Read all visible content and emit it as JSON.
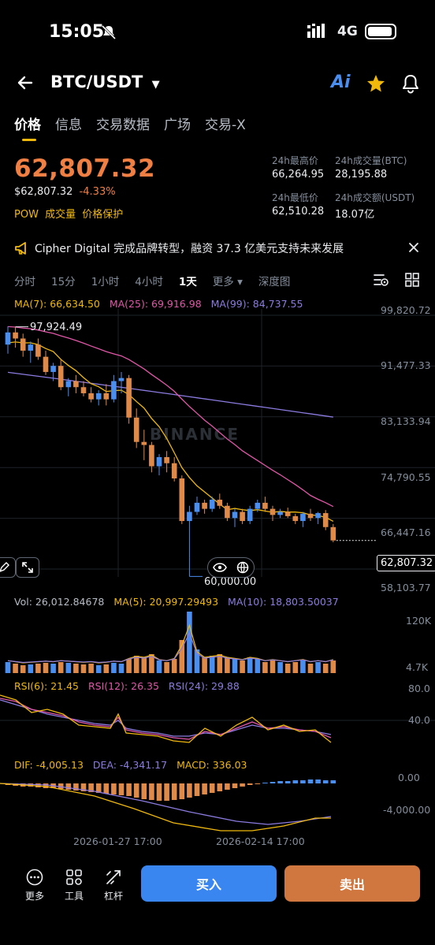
{
  "status_bar": {
    "time": "15:05",
    "network": "4G"
  },
  "header": {
    "pair": "BTC/USDT",
    "ai_label": "Ai"
  },
  "tabs": [
    "价格",
    "信息",
    "交易数据",
    "广场",
    "交易-X"
  ],
  "price": {
    "last": "62,807.32",
    "fiat": "$62,807.32",
    "change": "-4.33%",
    "tags": [
      "POW",
      "成交量",
      "价格保护"
    ]
  },
  "stats": {
    "high_label": "24h最高价",
    "high": "66,264.95",
    "vol_btc_label": "24h成交量(BTC)",
    "vol_btc": "28,195.88",
    "low_label": "24h最低价",
    "low": "62,510.28",
    "vol_usdt_label": "24h成交额(USDT)",
    "vol_usdt": "18.07亿"
  },
  "news": {
    "text": "Cipher Digital 完成品牌转型，融资 37.3 亿美元支持未来发展"
  },
  "intervals": [
    "分时",
    "15分",
    "1小时",
    "4小时",
    "1天",
    "更多 ▾",
    "深度图"
  ],
  "active_interval": "1天",
  "ma": {
    "ma7": "MA(7): 66,634.50",
    "ma25": "MA(25): 69,916.98",
    "ma99": "MA(99): 84,737.55"
  },
  "price_axis": [
    "99,820.72",
    "91,477.33",
    "83,133.94",
    "74,790.55",
    "66,447.16",
    "58,103.77"
  ],
  "current_price_tag": "62,807.32",
  "high_marker": "97,924.49",
  "low_marker": "60,000.00",
  "watermark": "BINANCE",
  "volume": {
    "vol": "Vol: 26,012.84678",
    "ma5": "MA(5): 20,997.29493",
    "ma10": "MA(10): 18,803.50037",
    "axis_top": "120K",
    "axis_bottom": "4.7K"
  },
  "rsi": {
    "rsi6": "RSI(6): 21.45",
    "rsi12": "RSI(12): 26.35",
    "rsi24": "RSI(24): 29.88",
    "axis_top": "80.0",
    "axis_mid": "40.0"
  },
  "macd": {
    "dif": "DIF: -4,005.13",
    "dea": "DEA: -4,341.17",
    "macd": "MACD: 336.03",
    "axis_top": "0.00",
    "axis_bottom": "-4,000.00"
  },
  "dates": [
    "2026-01-27 17:00",
    "2026-02-14 17:00"
  ],
  "bottom": {
    "more": "更多",
    "tools": "工具",
    "leverage": "杠杆",
    "buy": "买入",
    "sell": "卖出"
  },
  "colors": {
    "up": "#4A8FF0",
    "down": "#E08A4A",
    "ma7": "#F0B90B",
    "ma25": "#E056A8",
    "ma99": "#8C7BE0"
  },
  "chart_data": {
    "type": "candlestick",
    "interval": "1天",
    "pair": "BTC/USDT",
    "y_range": [
      58103.77,
      99820.72
    ],
    "candles": [
      [
        95000,
        98000,
        93500,
        97000
      ],
      [
        97000,
        97924.49,
        94500,
        96000
      ],
      [
        96000,
        96800,
        93000,
        94000
      ],
      [
        94000,
        95500,
        92000,
        95000
      ],
      [
        95000,
        96000,
        92500,
        93000
      ],
      [
        93000,
        94000,
        90000,
        90500
      ],
      [
        90500,
        92000,
        89000,
        91500
      ],
      [
        91500,
        92500,
        87500,
        88000
      ],
      [
        88000,
        89500,
        86500,
        89000
      ],
      [
        89000,
        90000,
        87000,
        88000
      ],
      [
        88000,
        89000,
        86500,
        87000
      ],
      [
        87000,
        88000,
        85500,
        86000
      ],
      [
        86000,
        87500,
        85000,
        87000
      ],
      [
        87000,
        88500,
        85000,
        86000
      ],
      [
        86000,
        90000,
        85500,
        89000
      ],
      [
        89000,
        90500,
        87000,
        89500
      ],
      [
        89500,
        90000,
        82000,
        83000
      ],
      [
        83000,
        84500,
        78000,
        79000
      ],
      [
        79000,
        81000,
        76000,
        78500
      ],
      [
        78500,
        79000,
        74000,
        75000
      ],
      [
        75000,
        77000,
        73500,
        76500
      ],
      [
        76500,
        77500,
        74000,
        75500
      ],
      [
        75500,
        76500,
        72500,
        73000
      ],
      [
        73000,
        73500,
        65500,
        66000
      ],
      [
        66000,
        68500,
        60000,
        67500
      ],
      [
        67500,
        70000,
        67000,
        69000
      ],
      [
        69000,
        69500,
        67200,
        68000
      ],
      [
        68000,
        70000,
        67500,
        69500
      ],
      [
        69500,
        70500,
        68000,
        68500
      ],
      [
        68500,
        69000,
        66000,
        66500
      ],
      [
        66500,
        68000,
        65000,
        67500
      ],
      [
        67500,
        68000,
        65500,
        66000
      ],
      [
        66000,
        68500,
        65500,
        68000
      ],
      [
        68000,
        69500,
        67500,
        69000
      ],
      [
        69000,
        70000,
        67500,
        68000
      ],
      [
        68000,
        68500,
        66000,
        67000
      ],
      [
        67000,
        68000,
        66500,
        67500
      ],
      [
        67500,
        68200,
        66500,
        66800
      ],
      [
        66800,
        67200,
        65500,
        66000
      ],
      [
        66000,
        67500,
        65000,
        67200
      ],
      [
        67200,
        68000,
        66000,
        66500
      ],
      [
        66500,
        67500,
        65500,
        67300
      ],
      [
        67300,
        67800,
        64500,
        65000
      ],
      [
        65000,
        65500,
        62510.28,
        62807.32
      ]
    ]
  }
}
